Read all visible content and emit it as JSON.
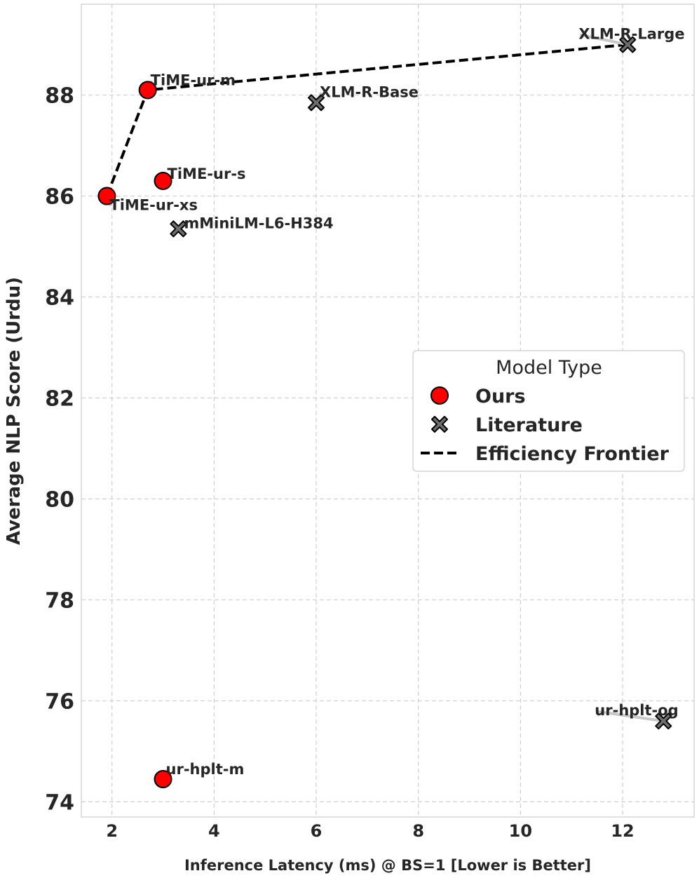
{
  "chart_data": {
    "type": "scatter",
    "xlabel": "Inference Latency (ms) @ BS=1 [Lower is Better]",
    "ylabel": "Average NLP Score (Urdu)",
    "xlim": [
      1.4,
      13.4
    ],
    "ylim": [
      73.7,
      89.8
    ],
    "xticks": [
      "2",
      "4",
      "6",
      "8",
      "10",
      "12"
    ],
    "yticks": [
      "74",
      "76",
      "78",
      "80",
      "82",
      "84",
      "86",
      "88"
    ],
    "grid": true,
    "legend": {
      "title": "Model Type",
      "position": "right",
      "entries": [
        "Ours",
        "Literature",
        "Efficiency Frontier"
      ]
    },
    "colors": {
      "ours": "#ff0000",
      "literature": "#6e6e6e",
      "frontier": "#000000",
      "grid": "#cfcfcf"
    },
    "series": [
      {
        "name": "Ours",
        "marker": "circle",
        "points": [
          {
            "label": "TiME-ur-xs",
            "x": 1.9,
            "y": 86.0
          },
          {
            "label": "TiME-ur-m",
            "x": 2.7,
            "y": 88.1
          },
          {
            "label": "TiME-ur-s",
            "x": 3.0,
            "y": 86.3
          },
          {
            "label": "ur-hplt-m",
            "x": 3.0,
            "y": 74.45
          }
        ]
      },
      {
        "name": "Literature",
        "marker": "x",
        "points": [
          {
            "label": "mMiniLM-L6-H384",
            "x": 3.3,
            "y": 85.35
          },
          {
            "label": "XLM-R-Base",
            "x": 6.0,
            "y": 87.85
          },
          {
            "label": "XLM-R-Large",
            "x": 12.1,
            "y": 89.0
          },
          {
            "label": "ur-hplt-og",
            "x": 12.8,
            "y": 75.6
          }
        ]
      },
      {
        "name": "Efficiency Frontier",
        "type": "line",
        "style": "dashed",
        "x": [
          1.9,
          2.7,
          12.1
        ],
        "y": [
          86.0,
          88.1,
          89.0
        ]
      }
    ]
  }
}
